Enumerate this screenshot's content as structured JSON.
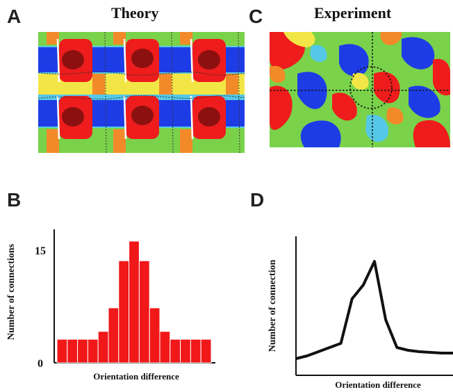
{
  "panels": {
    "a": {
      "letter": "A",
      "title": "Theory"
    },
    "b": {
      "letter": "B"
    },
    "c": {
      "letter": "C",
      "title": "Experiment"
    },
    "d": {
      "letter": "D"
    }
  },
  "colors": {
    "red": "#ee1c1c",
    "darkred": "#8c1010",
    "blue": "#1e3ce6",
    "cyan": "#55c8e8",
    "green": "#7ad24a",
    "yellow": "#f2e646",
    "orange": "#f28a2a",
    "bar_fill": "#f01818"
  },
  "chart_data": [
    {
      "type": "bar",
      "panel": "B",
      "xlabel": "Orientation difference",
      "ylabel": "Number of connections",
      "yticks": [
        "0",
        "15"
      ],
      "ylim": [
        0,
        17
      ],
      "values": [
        3,
        3,
        3,
        3,
        4,
        7,
        13,
        15.5,
        13,
        7,
        4,
        3,
        3,
        3,
        3
      ],
      "grid": false
    },
    {
      "type": "line",
      "panel": "D",
      "xlabel": "Orientation difference",
      "ylabel": "Number of connection",
      "ylim": [
        0,
        10
      ],
      "x": [
        0,
        1,
        2,
        3,
        4,
        5,
        6,
        7,
        8,
        9,
        10,
        11,
        12,
        13,
        14
      ],
      "values": [
        1.2,
        1.4,
        1.7,
        2.0,
        2.3,
        5.5,
        6.5,
        8.2,
        4.0,
        2.0,
        1.8,
        1.7,
        1.65,
        1.6,
        1.6
      ],
      "grid": false
    }
  ]
}
